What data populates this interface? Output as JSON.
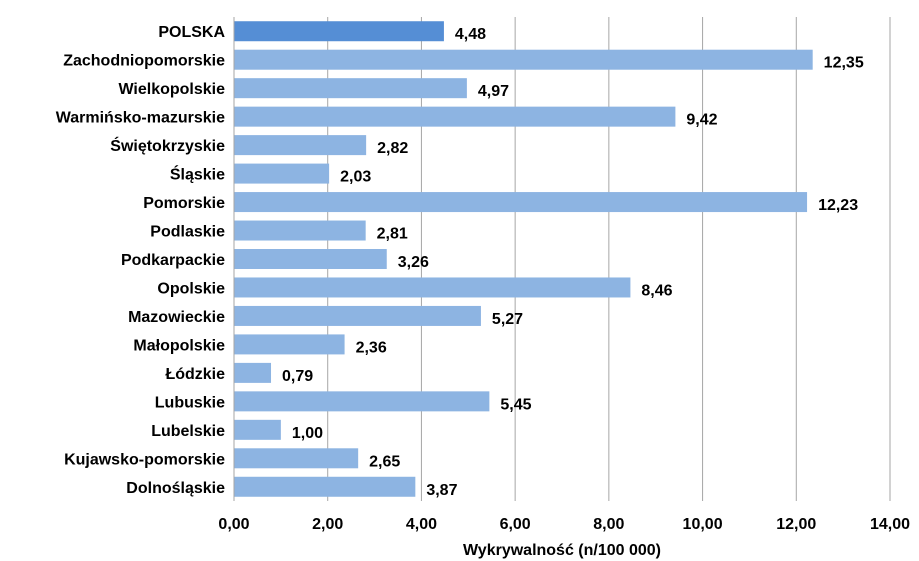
{
  "chart_data": {
    "type": "bar",
    "orientation": "horizontal",
    "categories": [
      "POLSKA",
      "Zachodniopomorskie",
      "Wielkopolskie",
      "Warmińsko-mazurskie",
      "Świętokrzyskie",
      "Śląskie",
      "Pomorskie",
      "Podlaskie",
      "Podkarpackie",
      "Opolskie",
      "Mazowieckie",
      "Małopolskie",
      "Łódzkie",
      "Lubuskie",
      "Lubelskie",
      "Kujawsko-pomorskie",
      "Dolnośląskie"
    ],
    "values": [
      4.48,
      12.35,
      4.97,
      9.42,
      2.82,
      2.03,
      12.23,
      2.81,
      3.26,
      8.46,
      5.27,
      2.36,
      0.79,
      5.45,
      1.0,
      2.65,
      3.87
    ],
    "value_labels": [
      "4,48",
      "12,35",
      "4,97",
      "9,42",
      "2,82",
      "2,03",
      "12,23",
      "2,81",
      "3,26",
      "8,46",
      "5,27",
      "2,36",
      "0,79",
      "5,45",
      "1,00",
      "2,65",
      "3,87"
    ],
    "highlight_category": "POLSKA",
    "xlabel": "Wykrywalność  (n/100  000)",
    "ylabel": "",
    "title": "",
    "xlim": [
      0,
      14
    ],
    "x_ticks": [
      0,
      2,
      4,
      6,
      8,
      10,
      12,
      14
    ],
    "x_tick_labels": [
      "0,00",
      "2,00",
      "4,00",
      "6,00",
      "8,00",
      "10,00",
      "12,00",
      "14,00"
    ],
    "grid": "vertical",
    "colors": {
      "bar": "#8db4e2",
      "highlight_bar": "#558ed5",
      "grid": "#a6a6a6"
    }
  }
}
